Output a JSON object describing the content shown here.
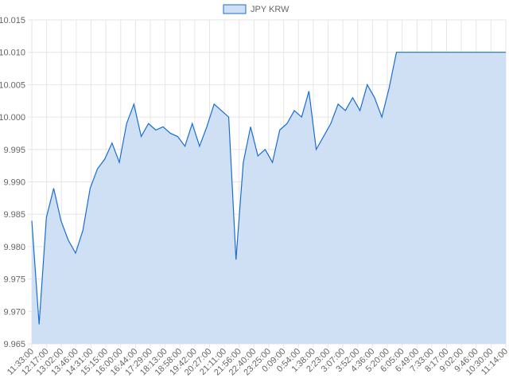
{
  "chart_data": {
    "type": "area",
    "title": "",
    "xlabel": "",
    "ylabel": "",
    "legend": {
      "position": "top-center",
      "entries": [
        "JPY KRW"
      ]
    },
    "grid": true,
    "colors": {
      "line": "#1a6dd0",
      "fill": "#cfe0f5",
      "grid": "#e6e6e6",
      "text": "#666666"
    },
    "ylim": [
      9.965,
      10.015
    ],
    "y_ticks": [
      "9.965",
      "9.970",
      "9.975",
      "9.980",
      "9.985",
      "9.990",
      "9.995",
      "10.000",
      "10.005",
      "10.010",
      "10.015"
    ],
    "x_ticks": [
      "11:33:00",
      "12:17:00",
      "13:02:00",
      "13:46:00",
      "14:31:00",
      "15:15:00",
      "16:00:00",
      "16:44:00",
      "17:29:00",
      "18:13:00",
      "18:58:00",
      "19:42:00",
      "20:27:00",
      "21:11:00",
      "21:56:00",
      "22:40:00",
      "23:25:00",
      "0:09:00",
      "0:54:00",
      "1:38:00",
      "2:23:00",
      "3:07:00",
      "3:52:00",
      "4:36:00",
      "5:20:00",
      "6:05:00",
      "6:49:00",
      "7:33:00",
      "8:17:00",
      "9:02:00",
      "9:46:00",
      "10:30:00",
      "11:14:00"
    ],
    "series": [
      {
        "name": "JPY KRW",
        "x": [
          "11:33:00",
          "11:55:00",
          "12:17:00",
          "12:40:00",
          "13:02:00",
          "13:24:00",
          "13:46:00",
          "14:09:00",
          "14:31:00",
          "14:53:00",
          "15:15:00",
          "15:38:00",
          "16:00:00",
          "16:22:00",
          "16:44:00",
          "17:07:00",
          "17:29:00",
          "17:51:00",
          "18:13:00",
          "18:36:00",
          "18:58:00",
          "19:20:00",
          "19:42:00",
          "20:05:00",
          "20:27:00",
          "20:49:00",
          "21:11:00",
          "21:34:00",
          "21:56:00",
          "22:18:00",
          "22:40:00",
          "23:03:00",
          "23:25:00",
          "23:47:00",
          "0:09:00",
          "0:32:00",
          "0:54:00",
          "1:16:00",
          "1:38:00",
          "2:01:00",
          "2:23:00",
          "2:45:00",
          "3:07:00",
          "3:30:00",
          "3:52:00",
          "4:14:00",
          "4:36:00",
          "4:58:00",
          "5:20:00",
          "5:43:00",
          "6:05:00",
          "6:27:00",
          "6:49:00",
          "7:11:00",
          "7:33:00",
          "7:55:00",
          "8:17:00",
          "8:40:00",
          "9:02:00",
          "9:24:00",
          "9:46:00",
          "10:08:00",
          "10:30:00",
          "10:52:00",
          "11:14:00",
          "11:36:00"
        ],
        "values": [
          9.984,
          9.968,
          9.9845,
          9.989,
          9.984,
          9.981,
          9.979,
          9.9825,
          9.989,
          9.992,
          9.9935,
          9.996,
          9.993,
          9.999,
          10.002,
          9.997,
          9.999,
          9.998,
          9.9985,
          9.9975,
          9.997,
          9.9955,
          9.999,
          9.9955,
          9.9985,
          10.002,
          10.001,
          10.0,
          9.978,
          9.993,
          9.9985,
          9.994,
          9.995,
          9.993,
          9.998,
          9.999,
          10.001,
          10.0,
          10.004,
          9.995,
          9.997,
          9.999,
          10.002,
          10.001,
          10.003,
          10.001,
          10.005,
          10.003,
          10.0,
          10.0045,
          10.01,
          10.01,
          10.01,
          10.01,
          10.01,
          10.01,
          10.01,
          10.01,
          10.01,
          10.01,
          10.01,
          10.01,
          10.01,
          10.01,
          10.01,
          10.01
        ]
      }
    ]
  }
}
